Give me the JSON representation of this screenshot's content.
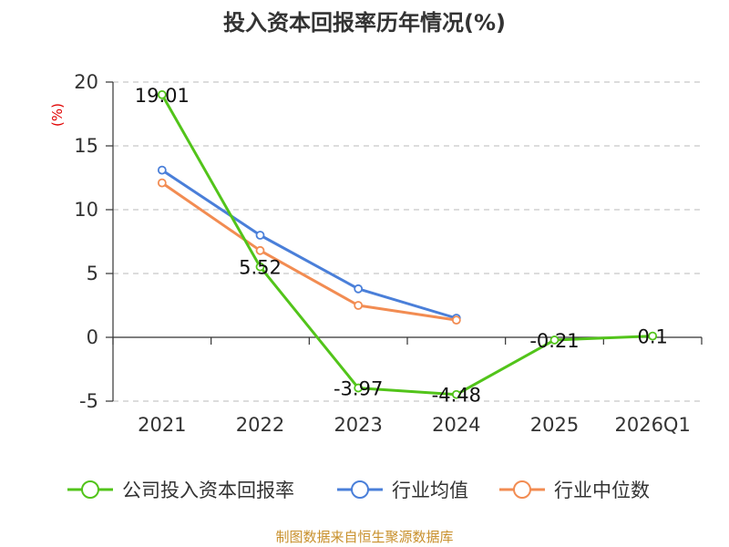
{
  "chart_data": {
    "type": "line",
    "title": "投入资本回报率历年情况(%)",
    "categories": [
      "2021",
      "2022",
      "2023",
      "2024",
      "2025",
      "2026Q1"
    ],
    "ylabel": "(%)",
    "ylim": [
      -5,
      20
    ],
    "yticks": [
      -5,
      0,
      5,
      10,
      15,
      20
    ],
    "grid": true,
    "legend_position": "bottom",
    "series": [
      {
        "name": "公司投入资本回报率",
        "color": "#52c41a",
        "values": [
          19.01,
          5.52,
          -3.97,
          -4.48,
          -0.21,
          0.1
        ],
        "labels": [
          "19.01",
          "5.52",
          "-3.97",
          "-4.48",
          "-0.21",
          "0.1"
        ]
      },
      {
        "name": "行业均值",
        "color": "#4a7fd9",
        "values": [
          13.1,
          8.0,
          3.8,
          1.5,
          null,
          null
        ]
      },
      {
        "name": "行业中位数",
        "color": "#f28c52",
        "values": [
          12.1,
          6.8,
          2.5,
          1.35,
          null,
          null
        ]
      }
    ]
  },
  "source": "制图数据来自恒生聚源数据库",
  "colors": {
    "source": "#c8902c",
    "unit": "#e00000",
    "grid": "#c8c8c8",
    "axis": "#333333"
  }
}
